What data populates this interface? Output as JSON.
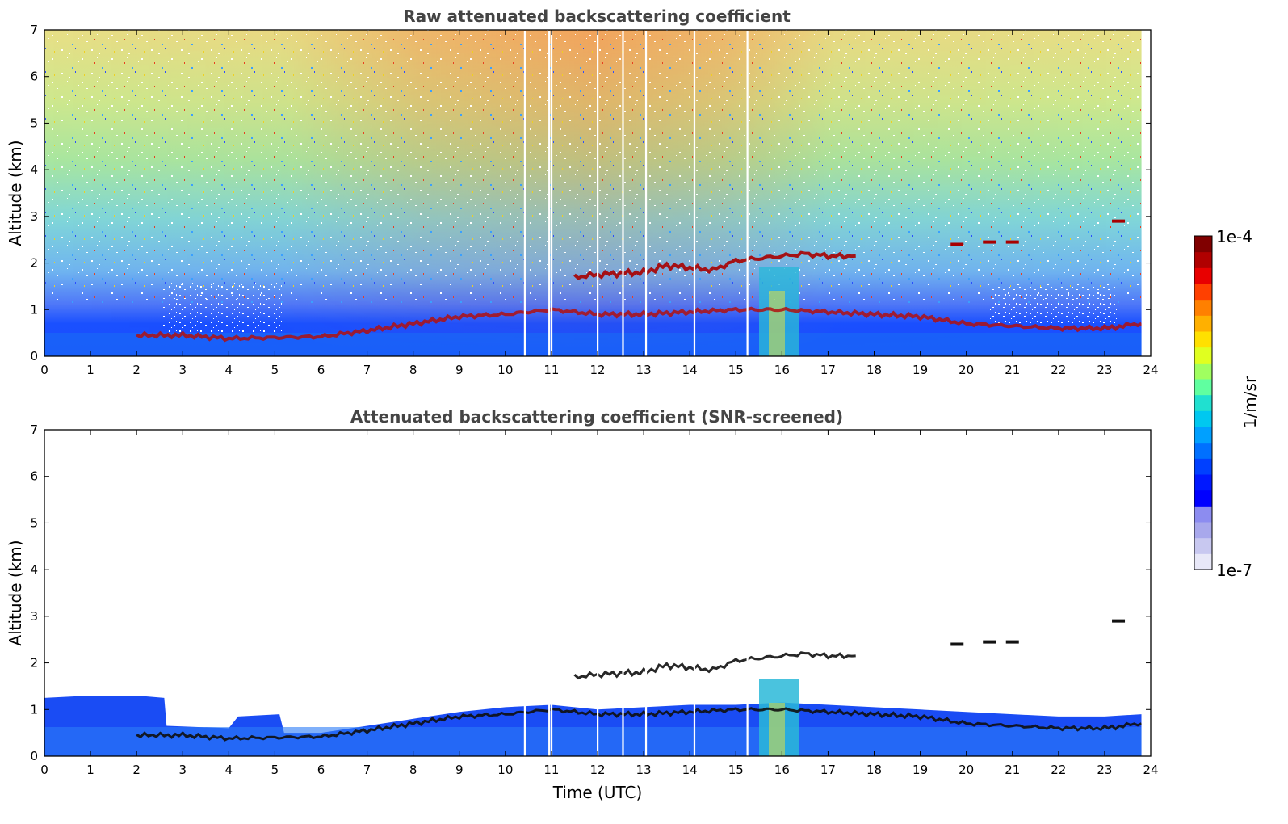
{
  "chart_data": [
    {
      "type": "heatmap",
      "title": "Raw attenuated backscattering coefficient",
      "xlabel": "",
      "ylabel": "Altitude (km)",
      "xlim": [
        0,
        24
      ],
      "ylim": [
        0,
        7
      ],
      "xticks": [
        "0",
        "1",
        "2",
        "3",
        "4",
        "5",
        "6",
        "7",
        "8",
        "9",
        "10",
        "11",
        "12",
        "13",
        "14",
        "15",
        "16",
        "17",
        "18",
        "19",
        "20",
        "21",
        "22",
        "23",
        "24"
      ],
      "yticks": [
        "0",
        "1",
        "2",
        "3",
        "4",
        "5",
        "6",
        "7"
      ],
      "data_end_hour": 23.8,
      "gaps_hours": [
        10.42,
        10.95,
        11.0,
        12.0,
        12.55,
        13.05,
        14.1,
        15.25
      ],
      "features": {
        "boundary_layer_top_km": [
          [
            2.0,
            0.45
          ],
          [
            2.6,
            0.45
          ],
          [
            3.0,
            0.45
          ],
          [
            4.0,
            0.38
          ],
          [
            5.0,
            0.4
          ],
          [
            6.0,
            0.42
          ],
          [
            7.0,
            0.55
          ],
          [
            8.0,
            0.7
          ],
          [
            9.0,
            0.85
          ],
          [
            10.0,
            0.9
          ],
          [
            11.0,
            1.0
          ],
          [
            12.0,
            0.9
          ],
          [
            13.0,
            0.9
          ],
          [
            14.0,
            0.95
          ],
          [
            15.0,
            1.0
          ],
          [
            16.0,
            1.0
          ],
          [
            17.0,
            0.95
          ],
          [
            18.0,
            0.9
          ],
          [
            19.0,
            0.85
          ],
          [
            20.0,
            0.7
          ],
          [
            21.0,
            0.65
          ],
          [
            22.0,
            0.6
          ],
          [
            23.0,
            0.6
          ],
          [
            23.8,
            0.7
          ]
        ],
        "elevated_layer_km": [
          [
            11.5,
            1.7
          ],
          [
            12.0,
            1.75
          ],
          [
            12.5,
            1.78
          ],
          [
            13.0,
            1.8
          ],
          [
            13.5,
            1.95
          ],
          [
            14.0,
            1.9
          ],
          [
            14.5,
            1.85
          ],
          [
            15.0,
            2.05
          ],
          [
            15.5,
            2.1
          ],
          [
            16.5,
            2.2
          ],
          [
            17.0,
            2.15
          ],
          [
            17.6,
            2.15
          ]
        ],
        "high_cloud_km": [
          [
            19.8,
            2.4
          ],
          [
            20.5,
            2.45
          ],
          [
            21.0,
            2.45
          ],
          [
            23.3,
            2.9
          ]
        ]
      }
    },
    {
      "type": "heatmap",
      "title": "Attenuated backscattering coefficient (SNR-screened)",
      "xlabel": "Time (UTC)",
      "ylabel": "Altitude (km)",
      "xlim": [
        0,
        24
      ],
      "ylim": [
        0,
        7
      ],
      "xticks": [
        "0",
        "1",
        "2",
        "3",
        "4",
        "5",
        "6",
        "7",
        "8",
        "9",
        "10",
        "11",
        "12",
        "13",
        "14",
        "15",
        "16",
        "17",
        "18",
        "19",
        "20",
        "21",
        "22",
        "23",
        "24"
      ],
      "yticks": [
        "0",
        "1",
        "2",
        "3",
        "4",
        "5",
        "6",
        "7"
      ],
      "data_end_hour": 23.8,
      "gaps_hours": [
        10.42,
        10.95,
        11.0,
        12.0,
        12.55,
        13.05,
        14.1,
        15.25
      ],
      "signal_top_km": [
        [
          0.0,
          1.25
        ],
        [
          1.0,
          1.3
        ],
        [
          2.0,
          1.3
        ],
        [
          2.6,
          1.25
        ],
        [
          2.65,
          0.65
        ],
        [
          4.0,
          0.6
        ],
        [
          4.2,
          0.85
        ],
        [
          5.1,
          0.9
        ],
        [
          5.2,
          0.5
        ],
        [
          6.0,
          0.5
        ],
        [
          7.0,
          0.65
        ],
        [
          8.0,
          0.8
        ],
        [
          9.0,
          0.95
        ],
        [
          10.0,
          1.05
        ],
        [
          11.0,
          1.1
        ],
        [
          12.0,
          1.0
        ],
        [
          13.0,
          1.05
        ],
        [
          14.0,
          1.1
        ],
        [
          15.0,
          1.1
        ],
        [
          16.0,
          1.15
        ],
        [
          17.0,
          1.1
        ],
        [
          18.0,
          1.05
        ],
        [
          19.0,
          1.0
        ],
        [
          20.0,
          0.95
        ],
        [
          21.0,
          0.9
        ],
        [
          22.0,
          0.85
        ],
        [
          23.0,
          0.85
        ],
        [
          23.8,
          0.9
        ]
      ]
    }
  ],
  "colorbar": {
    "max_label": "1e-4",
    "min_label": "1e-7",
    "units_label": "1/m/sr",
    "colors": [
      "#e8e8f8",
      "#c8c8f0",
      "#a8a8ec",
      "#8c8cf0",
      "#0000ff",
      "#0018ff",
      "#0040ff",
      "#0070ff",
      "#00a0ff",
      "#00c8f0",
      "#20e0d0",
      "#60ffa0",
      "#a0ff60",
      "#e0ff20",
      "#ffe000",
      "#ffb000",
      "#ff8000",
      "#ff4000",
      "#e80000",
      "#b00000",
      "#800000"
    ]
  }
}
